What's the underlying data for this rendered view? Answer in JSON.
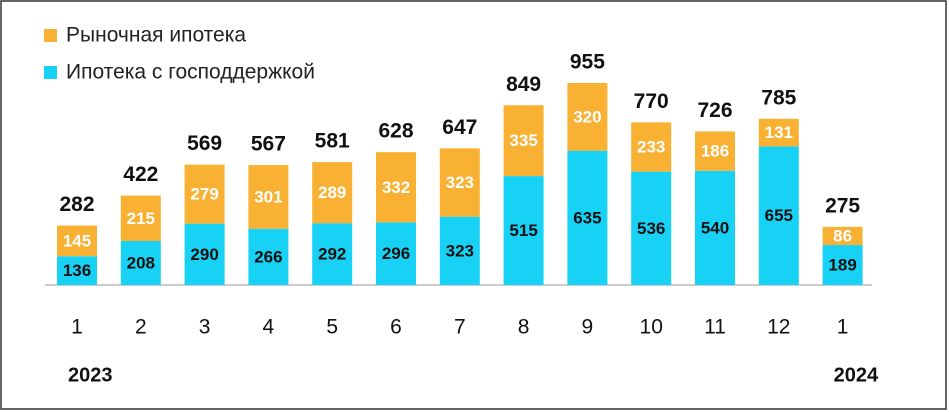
{
  "chart_data": {
    "type": "stacked_bar",
    "categories": [
      "1",
      "2",
      "3",
      "4",
      "5",
      "6",
      "7",
      "8",
      "9",
      "10",
      "11",
      "12",
      "1"
    ],
    "year_labels": [
      "2023",
      "2024"
    ],
    "series": [
      {
        "name": "Рыночная ипотека",
        "color": "#f8b133",
        "label_color": "#ffffff",
        "values": [
          145,
          215,
          279,
          301,
          289,
          332,
          323,
          335,
          320,
          233,
          186,
          131,
          86
        ]
      },
      {
        "name": "Ипотека с господдержкой",
        "color": "#17d2f4",
        "label_color": "#111111",
        "values": [
          136,
          208,
          290,
          266,
          292,
          296,
          323,
          515,
          635,
          536,
          540,
          655,
          189
        ]
      }
    ],
    "totals": [
      282,
      422,
      569,
      567,
      581,
      628,
      647,
      849,
      955,
      770,
      726,
      785,
      275
    ],
    "legend": "top-left"
  }
}
